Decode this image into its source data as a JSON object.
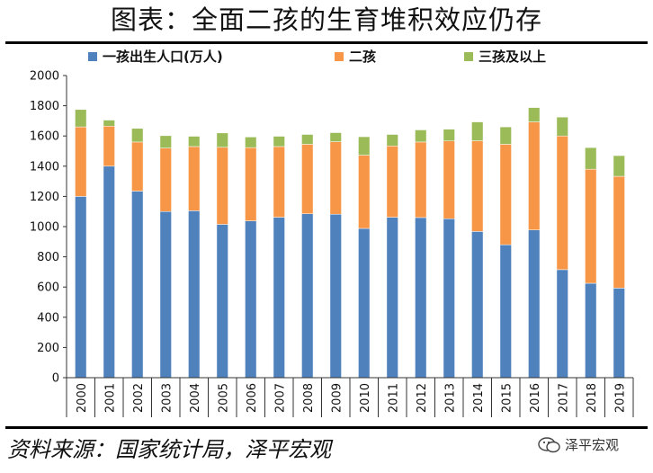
{
  "title": "图表：全面二孩的生育堆积效应仍存",
  "source": "资料来源：国家统计局，泽平宏观",
  "watermark": "泽平宏观",
  "chart_data": {
    "type": "bar",
    "stacked": true,
    "categories": [
      "2000",
      "2001",
      "2002",
      "2003",
      "2004",
      "2005",
      "2006",
      "2007",
      "2008",
      "2009",
      "2010",
      "2011",
      "2012",
      "2013",
      "2014",
      "2015",
      "2016",
      "2017",
      "2018",
      "2019"
    ],
    "series": [
      {
        "name": "一孩出生人口(万人)",
        "color": "#4f81bd",
        "values": [
          1200,
          1400,
          1235,
          1100,
          1105,
          1015,
          1038,
          1062,
          1085,
          1082,
          988,
          1062,
          1060,
          1052,
          968,
          880,
          978,
          715,
          625,
          593
        ]
      },
      {
        "name": "二孩",
        "color": "#f79646",
        "values": [
          460,
          265,
          325,
          420,
          425,
          510,
          485,
          468,
          460,
          480,
          485,
          472,
          500,
          515,
          600,
          665,
          715,
          885,
          755,
          740
        ]
      },
      {
        "name": "三孩及以上",
        "color": "#9bbb59",
        "values": [
          115,
          40,
          90,
          82,
          68,
          95,
          70,
          68,
          65,
          60,
          122,
          76,
          80,
          78,
          125,
          115,
          95,
          125,
          143,
          137
        ]
      }
    ],
    "ylim": [
      0,
      2000
    ],
    "yticks": [
      0,
      200,
      400,
      600,
      800,
      1000,
      1200,
      1400,
      1600,
      1800,
      2000
    ],
    "grid": false,
    "legend": "top"
  }
}
